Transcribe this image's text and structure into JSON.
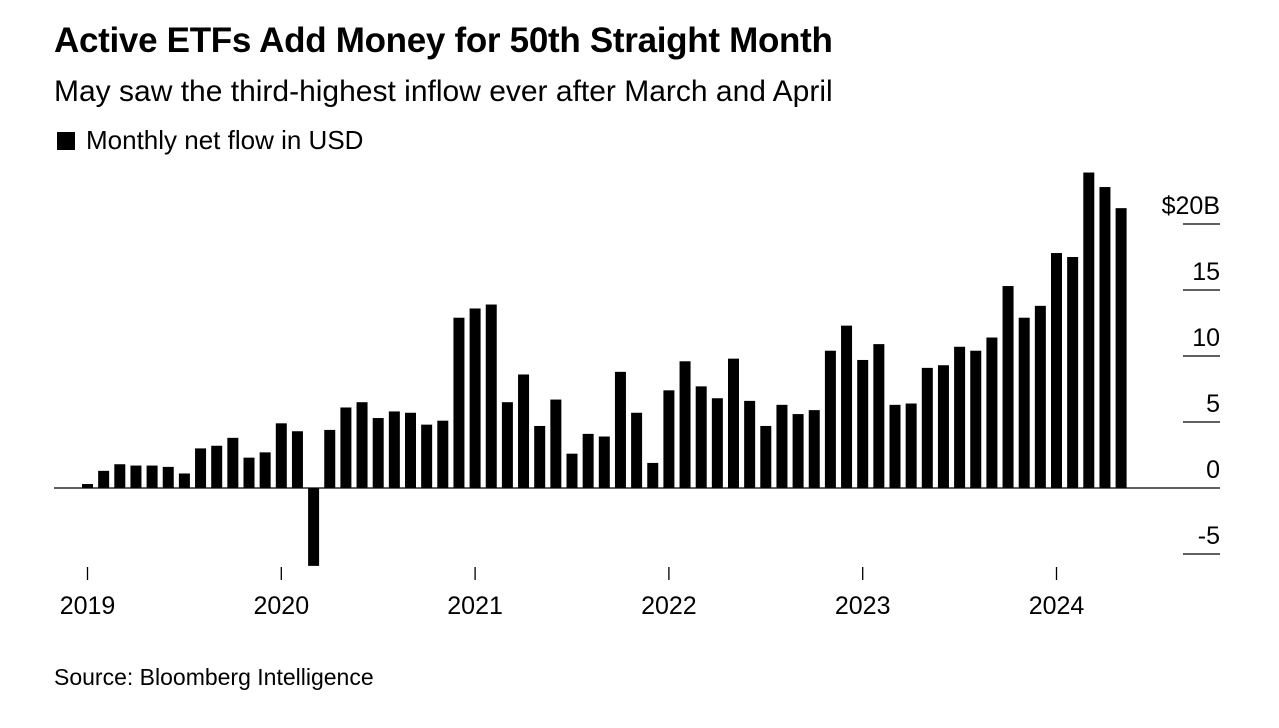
{
  "title": "Active ETFs Add Money for 50th Straight Month",
  "subtitle": "May saw the third-highest inflow ever after March and April",
  "legend": {
    "label": "Monthly net flow in USD",
    "color": "#000000"
  },
  "source": "Source: Bloomberg Intelligence",
  "chart_data": {
    "type": "bar",
    "title": "Active ETFs Add Money for 50th Straight Month",
    "subtitle": "May saw the third-highest inflow ever after March and April",
    "xlabel": "",
    "ylabel": "",
    "unit": "USD billions",
    "ylim": [
      -6,
      24
    ],
    "grid": false,
    "legend_position": "top-left",
    "y_ticks": [
      {
        "value": 20,
        "label": "$20B"
      },
      {
        "value": 15,
        "label": "15"
      },
      {
        "value": 10,
        "label": "10"
      },
      {
        "value": 5,
        "label": "5"
      },
      {
        "value": 0,
        "label": "0"
      },
      {
        "value": -5,
        "label": "-5"
      }
    ],
    "x_ticks": [
      "2019",
      "2020",
      "2021",
      "2022",
      "2023",
      "2024"
    ],
    "series": [
      {
        "name": "Monthly net flow in USD",
        "color": "#000000",
        "start": "2019-01",
        "categories": [
          "2019-01",
          "2019-02",
          "2019-03",
          "2019-04",
          "2019-05",
          "2019-06",
          "2019-07",
          "2019-08",
          "2019-09",
          "2019-10",
          "2019-11",
          "2019-12",
          "2020-01",
          "2020-02",
          "2020-03",
          "2020-04",
          "2020-05",
          "2020-06",
          "2020-07",
          "2020-08",
          "2020-09",
          "2020-10",
          "2020-11",
          "2020-12",
          "2021-01",
          "2021-02",
          "2021-03",
          "2021-04",
          "2021-05",
          "2021-06",
          "2021-07",
          "2021-08",
          "2021-09",
          "2021-10",
          "2021-11",
          "2021-12",
          "2022-01",
          "2022-02",
          "2022-03",
          "2022-04",
          "2022-05",
          "2022-06",
          "2022-07",
          "2022-08",
          "2022-09",
          "2022-10",
          "2022-11",
          "2022-12",
          "2023-01",
          "2023-02",
          "2023-03",
          "2023-04",
          "2023-05",
          "2023-06",
          "2023-07",
          "2023-08",
          "2023-09",
          "2023-10",
          "2023-11",
          "2023-12",
          "2024-01",
          "2024-02",
          "2024-03",
          "2024-04",
          "2024-05"
        ],
        "values": [
          0.3,
          1.3,
          1.8,
          1.7,
          1.7,
          1.6,
          1.1,
          3.0,
          3.2,
          3.8,
          2.3,
          2.7,
          4.9,
          4.3,
          -5.9,
          4.4,
          6.1,
          6.5,
          5.3,
          5.8,
          5.7,
          4.8,
          5.1,
          12.9,
          13.6,
          13.9,
          6.5,
          8.6,
          4.7,
          6.7,
          2.6,
          4.1,
          3.9,
          8.8,
          5.7,
          1.9,
          7.4,
          9.6,
          7.7,
          6.8,
          9.8,
          6.6,
          4.7,
          6.3,
          5.6,
          5.9,
          10.4,
          12.3,
          9.7,
          10.9,
          6.3,
          6.4,
          9.1,
          9.3,
          10.7,
          10.4,
          11.4,
          15.3,
          12.9,
          13.8,
          17.8,
          17.5,
          23.9,
          22.8,
          21.2
        ]
      }
    ]
  }
}
